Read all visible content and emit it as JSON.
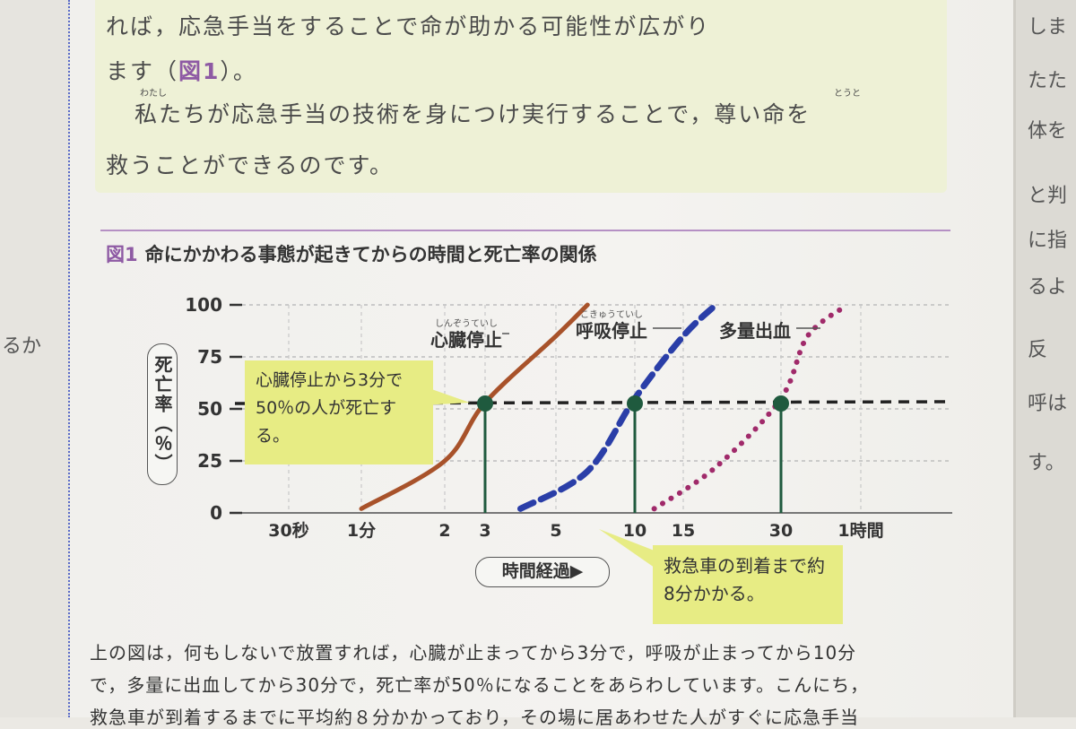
{
  "text": {
    "top_line1": "れば，応急手当をすることで命が助かる可能性が広がり",
    "top_line2_pre": "ます（",
    "top_line2_ref": "図1",
    "top_line2_post": "）。",
    "top_line3": "私たちが応急手当の技術を身につけ実行することで，尊い命を",
    "top_line4": "救うことができるのです。",
    "ruby_watashi": "わたし",
    "ruby_toto": "とうと",
    "figure_num": "図1",
    "figure_title": "命にかかわる事態が起きてからの時間と死亡率の関係",
    "y_label": "▲死亡率（％）",
    "x_label": "時間経過▶",
    "callout_left": "心臓停止から3分で50％の人が死亡する。",
    "callout_right": "救急車の到着まで約8分かかる。",
    "body_line1": "上の図は，何もしないで放置すれば，心臓が止まってから3分で，呼吸が止まってから10分",
    "body_line2": "で，多量に出血してから30分で，死亡率が50％になることをあらわしています。こんにち，",
    "body_line3": "救急車が到着するまでに平均約８分かかっており，その場に居あわせた人がすぐに応急手当",
    "left_edge_text": "るか",
    "right_edge_chars": [
      "しま",
      "たた",
      "体を",
      "と判",
      "に指",
      "るよ",
      "反",
      "呼は",
      "す。"
    ]
  },
  "chart_data": {
    "type": "line",
    "title": "命にかかわる事態が起きてからの時間と死亡率の関係",
    "ylabel": "死亡率（％）",
    "xlabel": "時間経過",
    "ylim": [
      0,
      100
    ],
    "y_ticks": [
      0,
      25,
      50,
      75,
      100
    ],
    "x_ticks": [
      "30秒",
      "1分",
      "2",
      "3",
      "5",
      "10",
      "15",
      "30",
      "1時間"
    ],
    "reference_line": 50,
    "series": [
      {
        "name": "心臓停止",
        "ruby": "しんぞうていし",
        "style": "solid",
        "color": "#a8522a",
        "points": [
          [
            1,
            2
          ],
          [
            2,
            25
          ],
          [
            3,
            53
          ],
          [
            5,
            85
          ],
          [
            7,
            100
          ]
        ],
        "marker": {
          "x": 3,
          "y": 50
        }
      },
      {
        "name": "呼吸停止",
        "ruby": "こきゅうていし",
        "style": "dashed",
        "color": "#2a3ea8",
        "points": [
          [
            4,
            2
          ],
          [
            7,
            20
          ],
          [
            10,
            55
          ],
          [
            15,
            85
          ],
          [
            20,
            100
          ]
        ],
        "marker": {
          "x": 10,
          "y": 50
        }
      },
      {
        "name": "多量出血",
        "style": "dotted",
        "color": "#a02a6a",
        "points": [
          [
            12,
            2
          ],
          [
            20,
            22
          ],
          [
            30,
            55
          ],
          [
            40,
            85
          ],
          [
            55,
            100
          ]
        ],
        "marker": {
          "x": 30,
          "y": 50
        }
      }
    ]
  }
}
